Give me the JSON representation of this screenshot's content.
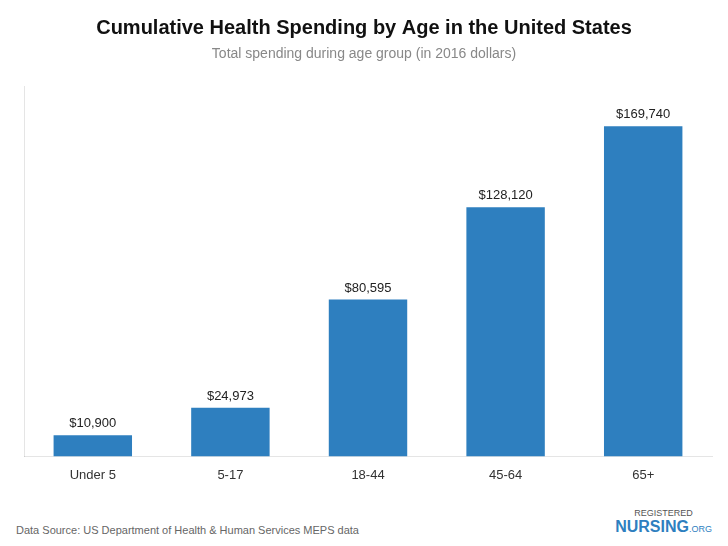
{
  "chart_data": {
    "type": "bar",
    "title": "Cumulative Health Spending by Age in the United States",
    "subtitle": "Total spending during age group (in 2016 dollars)",
    "categories": [
      "Under 5",
      "5-17",
      "18-44",
      "45-64",
      "65+"
    ],
    "values": [
      10900,
      24973,
      80595,
      128120,
      169740
    ],
    "value_labels": [
      "$10,900",
      "$24,973",
      "$80,595",
      "$128,120",
      "$169,740"
    ],
    "data_labels": true,
    "color": "#2E7FBF",
    "ylim": [
      0,
      190000
    ],
    "grid": false,
    "tick_labels": "x",
    "annotations": [
      "Data Source: US Department of Health & Human Services MEPS data",
      "REGISTERED",
      "NURSING",
      ".ORG"
    ]
  }
}
